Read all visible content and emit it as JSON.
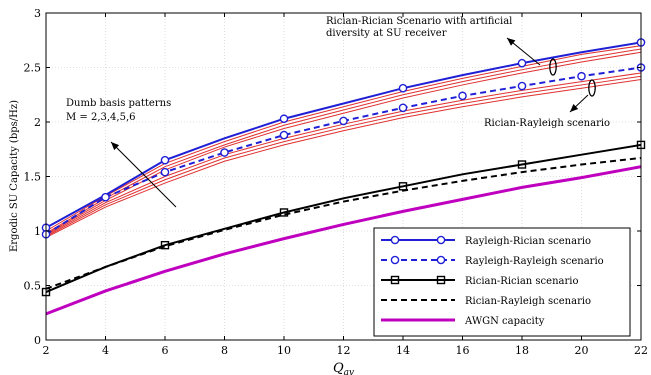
{
  "chart_data": {
    "type": "line",
    "xlabel": "Q_av",
    "ylabel": "Ergodic SU Capacity (bps/Hz)",
    "xlim": [
      2,
      22
    ],
    "ylim": [
      0,
      3
    ],
    "xticks": [
      "2",
      "4",
      "6",
      "8",
      "10",
      "12",
      "14",
      "16",
      "18",
      "20",
      "22"
    ],
    "yticks": [
      "0",
      "0.5",
      "1",
      "1.5",
      "2",
      "2.5",
      "3"
    ],
    "grid": true,
    "legend_position": "bottom-right",
    "series": [
      {
        "name": "Rayleigh-Rician scenario",
        "color": "#1f1fd6",
        "style": "solid",
        "marker": "circle",
        "x": [
          2,
          4,
          6,
          8,
          10,
          12,
          14,
          16,
          18,
          20,
          22
        ],
        "y": [
          1.03,
          1.33,
          1.65,
          1.85,
          2.03,
          2.17,
          2.31,
          2.43,
          2.54,
          2.64,
          2.73
        ]
      },
      {
        "name": "Rayleigh-Rayleigh scenario",
        "color": "#1f1fd6",
        "style": "dashed",
        "marker": "circle",
        "x": [
          2,
          4,
          6,
          8,
          10,
          12,
          14,
          16,
          18,
          20,
          22
        ],
        "y": [
          0.97,
          1.31,
          1.54,
          1.72,
          1.88,
          2.01,
          2.13,
          2.24,
          2.33,
          2.42,
          2.5
        ]
      },
      {
        "name": "Rician-Rician scenario",
        "color": "#000000",
        "style": "solid",
        "marker": "square",
        "x": [
          2,
          4,
          6,
          8,
          10,
          12,
          14,
          16,
          18,
          20,
          22
        ],
        "y": [
          0.44,
          0.67,
          0.87,
          1.02,
          1.17,
          1.3,
          1.41,
          1.52,
          1.61,
          1.7,
          1.79
        ]
      },
      {
        "name": "Rician-Rayleigh scenario",
        "color": "#000000",
        "style": "dashed",
        "marker": "none",
        "x": [
          2,
          4,
          6,
          8,
          10,
          12,
          14,
          16,
          18,
          20,
          22
        ],
        "y": [
          0.47,
          0.67,
          0.86,
          1.01,
          1.15,
          1.27,
          1.37,
          1.46,
          1.54,
          1.61,
          1.67
        ]
      },
      {
        "name": "AWGN capacity",
        "color": "#bf00bf",
        "style": "solid",
        "marker": "none",
        "x": [
          2,
          4,
          6,
          8,
          10,
          12,
          14,
          16,
          18,
          20,
          22
        ],
        "y": [
          0.24,
          0.45,
          0.63,
          0.79,
          0.93,
          1.06,
          1.18,
          1.29,
          1.4,
          1.49,
          1.59
        ]
      }
    ],
    "pattern_lines": {
      "color": "#e03030",
      "x": [
        2,
        4,
        6,
        8,
        10,
        12,
        14,
        16,
        18,
        20,
        22
      ],
      "curves": [
        [
          1.0,
          1.32,
          1.62,
          1.82,
          2.0,
          2.14,
          2.28,
          2.4,
          2.51,
          2.62,
          2.7
        ],
        [
          0.98,
          1.3,
          1.59,
          1.79,
          1.97,
          2.11,
          2.25,
          2.37,
          2.48,
          2.58,
          2.67
        ],
        [
          0.97,
          1.28,
          1.56,
          1.77,
          1.94,
          2.08,
          2.22,
          2.34,
          2.45,
          2.55,
          2.64
        ],
        [
          0.96,
          1.26,
          1.5,
          1.7,
          1.85,
          1.98,
          2.1,
          2.2,
          2.29,
          2.37,
          2.45
        ],
        [
          0.95,
          1.24,
          1.47,
          1.67,
          1.82,
          1.95,
          2.07,
          2.17,
          2.26,
          2.34,
          2.42
        ],
        [
          0.94,
          1.22,
          1.44,
          1.64,
          1.79,
          1.92,
          2.04,
          2.14,
          2.23,
          2.31,
          2.39
        ]
      ]
    },
    "annotations": {
      "rician_rician_line1": "Rician-Rician Scenario with artificial",
      "rician_rician_line2": "diversity at SU receiver",
      "dumb_line1": "Dumb basis patterns",
      "dumb_line2": "M = 2,3,4,5,6",
      "rician_rayleigh": "Rician-Rayleigh scenario"
    }
  }
}
